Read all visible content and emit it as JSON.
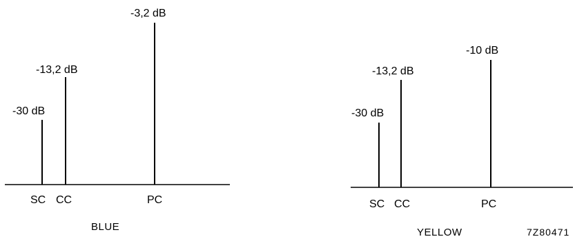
{
  "panels": [
    {
      "caption": "BLUE",
      "lines": [
        {
          "label": "-30 dB",
          "category": "SC",
          "db": -30
        },
        {
          "label": "-13,2 dB",
          "category": "CC",
          "db": -13.2
        },
        {
          "label": "-3,2 dB",
          "category": "PC",
          "db": -3.2
        }
      ]
    },
    {
      "caption": "YELLOW",
      "lines": [
        {
          "label": "-30 dB",
          "category": "SC",
          "db": -30
        },
        {
          "label": "-13,2 dB",
          "category": "CC",
          "db": -13.2
        },
        {
          "label": "-10 dB",
          "category": "PC",
          "db": -10
        }
      ]
    }
  ],
  "figure_code": "7Z80471",
  "colors": {
    "ink": "#000000",
    "background": "#ffffff"
  }
}
